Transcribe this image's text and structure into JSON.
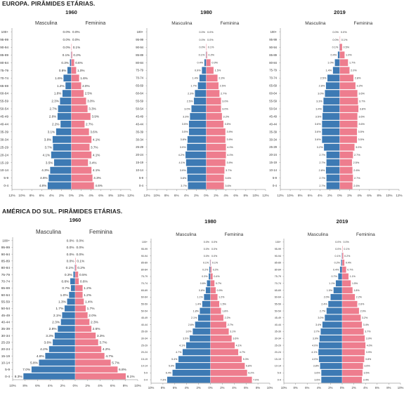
{
  "sections": [
    {
      "title": "EUROPA. PIRÂMIDES ETÁRIAS.",
      "charts": [
        {
          "year": "1960",
          "left_label": "Masculina",
          "right_label": "Feminina"
        },
        {
          "year": "1980",
          "left_label": "Masculina",
          "right_label": "Feminina"
        },
        {
          "year": "2019",
          "left_label": "Masculina",
          "right_label": "Feminina"
        }
      ]
    },
    {
      "title": "AMÉRICA DO SUL. PIRÂMIDES ETÁRIAS.",
      "charts": [
        {
          "year": "1960",
          "left_label": "Masculina",
          "right_label": "Feminina"
        },
        {
          "year": "1980",
          "left_label": "Masculina",
          "right_label": "Feminina"
        },
        {
          "year": "2019",
          "left_label": "Masculina",
          "right_label": "Feminina"
        }
      ]
    }
  ],
  "colors": {
    "male": "#3d7ab4",
    "female": "#ee7d8e",
    "axis": "#777777",
    "gridline": "#bbbbbb"
  },
  "chart_data": [
    {
      "type": "bar",
      "title": "1960",
      "region": "EUROPA",
      "categories": [
        "100+",
        "95-99",
        "90-94",
        "85-89",
        "80-84",
        "75-79",
        "70-74",
        "65-69",
        "60-64",
        "55-59",
        "50-54",
        "45-49",
        "40-44",
        "35-39",
        "30-34",
        "25-29",
        "20-24",
        "15-19",
        "10-14",
        "5-9",
        "0-4"
      ],
      "series": [
        {
          "name": "Masculina",
          "values": [
            0.0,
            0.0,
            0.0,
            0.1,
            0.3,
            0.8,
            1.6,
            1.2,
            1.8,
            2.3,
            2.7,
            2.8,
            2.2,
            3.1,
            3.8,
            3.7,
            4.1,
            3.5,
            4.3,
            4.6,
            4.8
          ]
        },
        {
          "name": "Feminina",
          "values": [
            0.0,
            0.0,
            0.1,
            0.2,
            0.6,
            1.0,
            1.6,
            2.0,
            2.5,
            3.0,
            3.3,
            3.9,
            2.7,
            3.6,
            4.1,
            3.7,
            4.1,
            3.4,
            4.1,
            4.3,
            4.6
          ]
        }
      ],
      "xlim": [
        -12,
        12
      ],
      "xticks": [
        "12%",
        "10%",
        "8%",
        "6%",
        "4%",
        "2%",
        "0%",
        "2%",
        "4%",
        "6%",
        "8%",
        "10%",
        "12%"
      ]
    },
    {
      "type": "bar",
      "title": "1980",
      "region": "EUROPA",
      "categories": [
        "100+",
        "95-99",
        "90-94",
        "85-89",
        "80-84",
        "75-79",
        "70-74",
        "65-69",
        "60-64",
        "55-59",
        "50-54",
        "45-49",
        "40-44",
        "35-39",
        "30-34",
        "25-29",
        "20-24",
        "15-19",
        "10-14",
        "5-9",
        "0-4"
      ],
      "series": [
        {
          "name": "Masculina",
          "values": [
            0.0,
            0.0,
            0.0,
            0.1,
            0.4,
            0.9,
            1.4,
            1.7,
            2.3,
            2.5,
            3.0,
            3.3,
            3.5,
            3.5,
            3.8,
            3.9,
            4.2,
            4.1,
            3.9,
            3.8,
            3.7
          ]
        },
        {
          "name": "Feminina",
          "values": [
            0.0,
            0.0,
            0.1,
            0.2,
            0.9,
            1.5,
            2.3,
            2.5,
            2.7,
            3.0,
            3.0,
            3.2,
            3.5,
            3.9,
            3.9,
            4.0,
            4.0,
            3.9,
            3.7,
            3.6,
            3.6
          ]
        }
      ],
      "xlim": [
        -12,
        12
      ],
      "xticks": [
        "12%",
        "10%",
        "8%",
        "6%",
        "4%",
        "2%",
        "0%",
        "2%",
        "4%",
        "6%",
        "8%",
        "10%",
        "12%"
      ]
    },
    {
      "type": "bar",
      "title": "2019",
      "region": "EUROPA",
      "categories": [
        "100+",
        "95-99",
        "90-94",
        "85-89",
        "80-84",
        "75-79",
        "70-74",
        "65-69",
        "60-64",
        "55-59",
        "50-54",
        "45-49",
        "40-44",
        "35-39",
        "30-34",
        "25-29",
        "20-24",
        "15-19",
        "10-14",
        "5-9",
        "0-4"
      ],
      "series": [
        {
          "name": "Masculina",
          "values": [
            0.0,
            0.0,
            0.1,
            0.4,
            1.0,
            1.4,
            2.5,
            2.8,
            3.0,
            3.3,
            3.4,
            3.5,
            3.6,
            3.6,
            3.6,
            3.2,
            2.7,
            2.7,
            2.8,
            2.7,
            2.7
          ]
        },
        {
          "name": "Feminina",
          "values": [
            0.0,
            0.1,
            0.5,
            1.0,
            1.7,
            2.0,
            2.8,
            3.2,
            3.6,
            3.7,
            3.8,
            3.6,
            3.6,
            3.5,
            3.5,
            3.0,
            2.7,
            2.5,
            2.6,
            2.7,
            2.6
          ]
        }
      ],
      "xlim": [
        -12,
        12
      ],
      "xticks": [
        "12%",
        "10%",
        "8%",
        "6%",
        "4%",
        "2%",
        "0%",
        "2%",
        "4%",
        "6%",
        "8%",
        "10%",
        "12%"
      ]
    },
    {
      "type": "bar",
      "title": "1960",
      "region": "AMÉRICA DO SUL",
      "categories": [
        "100+",
        "95-99",
        "90-94",
        "85-89",
        "80-84",
        "75-79",
        "70-74",
        "65-69",
        "60-64",
        "55-59",
        "50-54",
        "45-49",
        "40-44",
        "35-39",
        "30-34",
        "25-29",
        "20-24",
        "15-19",
        "10-14",
        "5-9",
        "0-4"
      ],
      "series": [
        {
          "name": "Masculina",
          "values": [
            0.0,
            0.0,
            0.0,
            0.0,
            0.1,
            0.3,
            0.8,
            0.7,
            1.0,
            1.3,
            1.7,
            2.1,
            2.3,
            2.8,
            3.3,
            3.6,
            4.2,
            4.8,
            5.8,
            7.0,
            8.3
          ]
        },
        {
          "name": "Feminina",
          "values": [
            0.0,
            0.0,
            0.0,
            0.1,
            0.2,
            0.5,
            0.6,
            1.2,
            1.2,
            1.4,
            1.7,
            2.0,
            2.3,
            2.6,
            3.3,
            3.7,
            4.2,
            4.7,
            5.7,
            6.8,
            8.1
          ]
        }
      ],
      "xlim": [
        -10,
        10
      ],
      "xticks": [
        "10%",
        "8%",
        "6%",
        "4%",
        "2%",
        "0%",
        "2%",
        "4%",
        "6%",
        "8%",
        "10%"
      ]
    },
    {
      "type": "bar",
      "title": "1980",
      "region": "AMÉRICA DO SUL",
      "categories": [
        "100+",
        "95-99",
        "90-94",
        "85-89",
        "80-84",
        "75-79",
        "70-74",
        "65-69",
        "60-64",
        "55-59",
        "50-54",
        "45-49",
        "40-44",
        "35-39",
        "30-34",
        "25-29",
        "20-24",
        "15-19",
        "10-14",
        "5-9",
        "0-4"
      ],
      "series": [
        {
          "name": "Masculina",
          "values": [
            0.0,
            0.0,
            0.0,
            0.1,
            0.2,
            0.3,
            0.6,
            0.8,
            1.1,
            1.4,
            1.8,
            2.1,
            2.6,
            3.0,
            3.5,
            4.1,
            4.7,
            5.4,
            5.9,
            6.4,
            7.3
          ]
        },
        {
          "name": "Feminina",
          "values": [
            0.0,
            0.0,
            0.0,
            0.1,
            0.2,
            0.4,
            0.7,
            0.9,
            1.2,
            1.5,
            1.8,
            2.2,
            2.7,
            3.1,
            3.6,
            4.1,
            4.7,
            5.3,
            5.8,
            6.2,
            7.0
          ]
        }
      ],
      "xlim": [
        -10,
        10
      ],
      "xticks": [
        "10%",
        "8%",
        "6%",
        "4%",
        "2%",
        "0%",
        "2%",
        "4%",
        "6%",
        "8%",
        "10%"
      ]
    },
    {
      "type": "bar",
      "title": "2019",
      "region": "AMÉRICA DO SUL",
      "categories": [
        "100+",
        "95-99",
        "90-94",
        "85-89",
        "80-84",
        "75-79",
        "70-74",
        "65-69",
        "60-64",
        "55-59",
        "50-54",
        "45-49",
        "40-44",
        "35-39",
        "30-34",
        "25-29",
        "20-24",
        "15-19",
        "10-14",
        "5-9",
        "0-4"
      ],
      "series": [
        {
          "name": "Masculina",
          "values": [
            0.0,
            0.0,
            0.1,
            0.2,
            0.4,
            0.7,
            1.1,
            1.5,
            2.0,
            2.4,
            2.7,
            3.0,
            3.4,
            3.7,
            3.9,
            4.0,
            4.1,
            4.0,
            3.8,
            3.6,
            3.6
          ]
        },
        {
          "name": "Feminina",
          "values": [
            0.0,
            0.1,
            0.2,
            0.4,
            0.7,
            1.1,
            1.5,
            1.8,
            2.2,
            2.6,
            2.9,
            3.2,
            3.4,
            3.7,
            3.9,
            4.0,
            3.9,
            3.8,
            3.6,
            3.5,
            3.4
          ]
        }
      ],
      "xlim": [
        -10,
        10
      ],
      "xticks": [
        "10%",
        "8%",
        "6%",
        "4%",
        "2%",
        "0%",
        "2%",
        "4%",
        "6%",
        "8%",
        "10%"
      ]
    }
  ]
}
